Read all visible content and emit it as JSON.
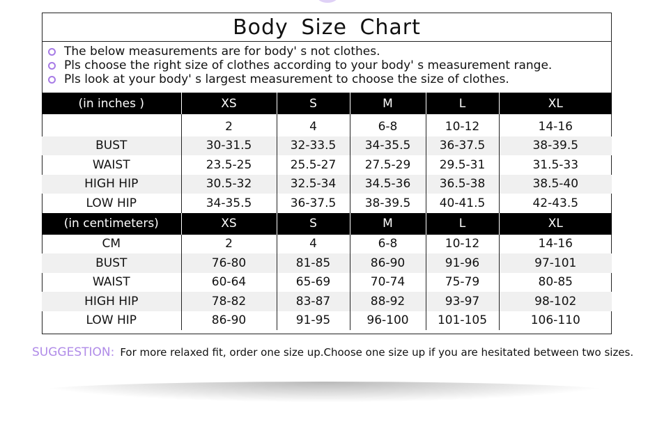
{
  "title": "Body  Size  Chart",
  "notes": [
    "The below measurements are for  body' s not clothes.",
    "Pls choose the right size of clothes according to your body' s  measurement range.",
    "Pls look  at your body' s  largest measurement to choose the size of clothes."
  ],
  "accent_color": "#a77be6",
  "inches": {
    "header": [
      "(in  inches )",
      "XS",
      "S",
      "M",
      "L",
      "XL"
    ],
    "rows": [
      [
        "",
        "2",
        "4",
        "6-8",
        "10-12",
        "14-16"
      ],
      [
        "BUST",
        "30-31.5",
        "32-33.5",
        "34-35.5",
        "36-37.5",
        "38-39.5"
      ],
      [
        "WAIST",
        "23.5-25",
        "25.5-27",
        "27.5-29",
        "29.5-31",
        "31.5-33"
      ],
      [
        "HIGH HIP",
        "30.5-32",
        "32.5-34",
        "34.5-36",
        "36.5-38",
        "38.5-40"
      ],
      [
        "LOW HIP",
        "34-35.5",
        "36-37.5",
        "38-39.5",
        "40-41.5",
        "42-43.5"
      ]
    ]
  },
  "centimeters": {
    "header": [
      "(in centimeters)",
      "XS",
      "S",
      "M",
      "L",
      "XL"
    ],
    "rows": [
      [
        "CM",
        "2",
        "4",
        "6-8",
        "10-12",
        "14-16"
      ],
      [
        "BUST",
        "76-80",
        "81-85",
        "86-90",
        "91-96",
        "97-101"
      ],
      [
        "WAIST",
        "60-64",
        "65-69",
        "70-74",
        "75-79",
        "80-85"
      ],
      [
        "HIGH HIP",
        "78-82",
        "83-87",
        "88-92",
        "93-97",
        "98-102"
      ],
      [
        "LOW HIP",
        "86-90",
        "91-95",
        "96-100",
        "101-105",
        "106-110"
      ]
    ]
  },
  "suggestion": {
    "label": "SUGGESTION:",
    "text": "For more relaxed fit, order one size up.Choose one size up if you are hesitated between two sizes."
  }
}
